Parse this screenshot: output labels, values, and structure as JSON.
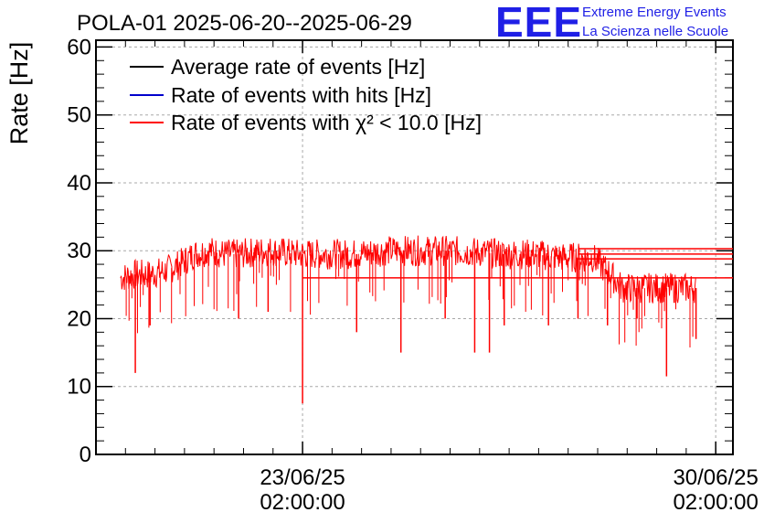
{
  "chart_data": {
    "type": "line",
    "title": "POLA-01 2025-06-20--2025-06-29",
    "ylabel": "Rate [Hz]",
    "xlabel": "",
    "ylim": [
      0,
      61
    ],
    "yticks": [
      0,
      10,
      20,
      30,
      40,
      50,
      60
    ],
    "xticks": [
      {
        "value": "2025-06-23 02:00:00",
        "label_date": "23/06/25",
        "label_time": "02:00:00"
      },
      {
        "value": "2025-06-30 02:00:00",
        "label_date": "30/06/25",
        "label_time": "02:00:00"
      }
    ],
    "xlim": [
      "2025-06-19 14:00",
      "2025-06-30 09:00"
    ],
    "grid": true,
    "legend_position": "top-left",
    "series": [
      {
        "name": "Average rate of events [Hz]",
        "color": "#000000",
        "values": []
      },
      {
        "name": "Rate of events with hits [Hz]",
        "color": "#0000cc",
        "values": []
      },
      {
        "name": "Rate of events with χ² < 10.0 [Hz]",
        "color": "#ff0000",
        "points": [
          [
            "2025-06-20 00:00",
            26
          ],
          [
            "2025-06-20 06:00",
            26.5
          ],
          [
            "2025-06-20 12:00",
            26.5
          ],
          [
            "2025-06-20 18:00",
            27
          ],
          [
            "2025-06-21 00:00",
            28
          ],
          [
            "2025-06-21 06:00",
            29.5
          ],
          [
            "2025-06-21 12:00",
            30
          ],
          [
            "2025-06-21 18:00",
            29.5
          ],
          [
            "2025-06-22 00:00",
            29.5
          ],
          [
            "2025-06-22 12:00",
            30
          ],
          [
            "2025-06-23 00:00",
            29.5
          ],
          [
            "2025-06-23 12:00",
            29.5
          ],
          [
            "2025-06-24 00:00",
            29.5
          ],
          [
            "2025-06-24 12:00",
            30
          ],
          [
            "2025-06-25 00:00",
            30
          ],
          [
            "2025-06-25 12:00",
            30
          ],
          [
            "2025-06-26 00:00",
            29.8
          ],
          [
            "2025-06-26 12:00",
            29.5
          ],
          [
            "2025-06-27 00:00",
            29.5
          ],
          [
            "2025-06-27 12:00",
            29
          ],
          [
            "2025-06-28 00:00",
            29
          ],
          [
            "2025-06-28 06:00",
            27
          ],
          [
            "2025-06-28 12:00",
            24.5
          ],
          [
            "2025-06-28 18:00",
            24.5
          ],
          [
            "2025-06-29 00:00",
            24.5
          ],
          [
            "2025-06-29 09:00",
            24.5
          ],
          [
            "2025-06-29 18:00",
            24.5
          ]
        ],
        "dips": [
          [
            "2025-06-20 06:00",
            12
          ],
          [
            "2025-06-20 12:00",
            19
          ],
          [
            "2025-06-22 00:00",
            20
          ],
          [
            "2025-06-22 12:00",
            21
          ],
          [
            "2025-06-23 02:00",
            7.5
          ],
          [
            "2025-06-24 00:00",
            18
          ],
          [
            "2025-06-24 18:00",
            15
          ],
          [
            "2025-06-25 12:00",
            20
          ],
          [
            "2025-06-26 00:00",
            15
          ],
          [
            "2025-06-26 06:00",
            15
          ],
          [
            "2025-06-26 12:00",
            19
          ],
          [
            "2025-06-27 06:00",
            19
          ],
          [
            "2025-06-27 18:00",
            20
          ],
          [
            "2025-06-28 06:00",
            19
          ],
          [
            "2025-06-28 18:00",
            20
          ],
          [
            "2025-06-29 06:00",
            11.5
          ],
          [
            "2025-06-29 18:00",
            17
          ]
        ],
        "trailing_levels": [
          30.3,
          29.5,
          28.8,
          26
        ]
      }
    ]
  },
  "logo": {
    "letters": "EEE",
    "line1": "Extreme Energy Events",
    "line2": "La Scienza nelle Scuole"
  }
}
